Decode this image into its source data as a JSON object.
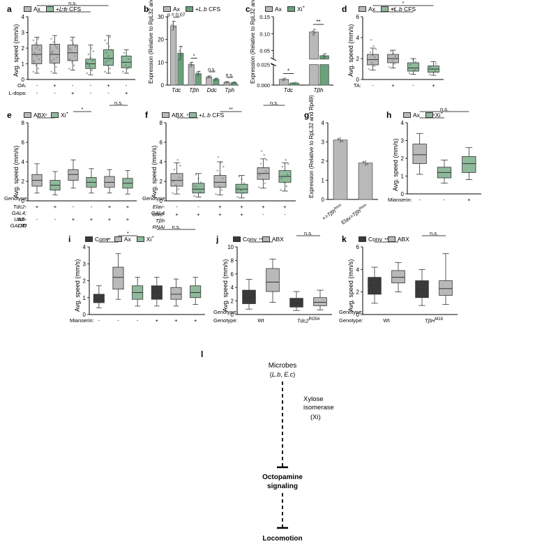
{
  "colors": {
    "gray": "#b9b9b9",
    "green": "#8fb99b",
    "dark": "#3a3a3a",
    "darkgreen": "#6aa07a",
    "axis": "#000000"
  },
  "panelA": {
    "label": "a",
    "type": "boxplot",
    "ylabel": "Avg. speed (mm/s)",
    "ylim": [
      0,
      4
    ],
    "ytick_step": 1,
    "legend": [
      {
        "label": "Ax",
        "color": "gray"
      },
      {
        "label": "+L.b CFS",
        "color": "green",
        "italic": true
      }
    ],
    "groups": [
      {
        "color": "gray",
        "q1": 1.0,
        "median": 1.6,
        "q3": 2.2,
        "lo": 0.4,
        "hi": 2.7,
        "dots": [
          0.5,
          0.7,
          0.9,
          1.1,
          1.3,
          1.5,
          1.7,
          1.9,
          2.1,
          2.3,
          2.5,
          2.6,
          2.0,
          1.2
        ]
      },
      {
        "color": "gray",
        "q1": 1.05,
        "median": 1.6,
        "q3": 2.25,
        "lo": 0.4,
        "hi": 2.8,
        "dots": [
          0.5,
          0.8,
          1.0,
          1.2,
          1.4,
          1.6,
          1.8,
          2.0,
          2.2,
          2.4,
          2.6,
          2.1,
          1.3,
          1.7
        ]
      },
      {
        "color": "gray",
        "q1": 1.2,
        "median": 1.7,
        "q3": 2.2,
        "lo": 0.6,
        "hi": 2.7,
        "dots": [
          0.7,
          0.9,
          1.1,
          1.3,
          1.5,
          1.7,
          1.9,
          2.1,
          2.3,
          2.5,
          2.0
        ]
      },
      {
        "color": "green",
        "q1": 0.7,
        "median": 1.0,
        "q3": 1.3,
        "lo": 0.3,
        "hi": 2.2,
        "dots": [
          0.4,
          0.6,
          0.8,
          1.0,
          1.2,
          1.4,
          1.6,
          1.8,
          2.0,
          0.9,
          1.1
        ]
      },
      {
        "color": "green",
        "q1": 0.9,
        "median": 1.35,
        "q3": 1.9,
        "lo": 0.4,
        "hi": 2.8,
        "dots": [
          0.5,
          0.7,
          0.9,
          1.1,
          1.3,
          1.5,
          1.7,
          1.9,
          2.1,
          2.3,
          2.5,
          2.7,
          1.2
        ]
      },
      {
        "color": "green",
        "q1": 0.75,
        "median": 1.1,
        "q3": 1.5,
        "lo": 0.4,
        "hi": 1.9,
        "dots": [
          0.5,
          0.7,
          0.9,
          1.1,
          1.3,
          1.5,
          1.7,
          0.8
        ]
      }
    ],
    "rows": [
      {
        "label": "OA:",
        "vals": [
          "-",
          "+",
          "-",
          "-",
          "+",
          "-"
        ]
      },
      {
        "label": "L-dopa:",
        "vals": [
          "-",
          "-",
          "+",
          "-",
          "-",
          "+"
        ]
      }
    ],
    "sig": [
      {
        "text": "**",
        "from": 0,
        "to": 3
      },
      {
        "text": "n.s.",
        "from": 0,
        "to": 4
      },
      {
        "text": "*",
        "from": 0,
        "to": 5
      }
    ]
  },
  "panelB": {
    "label": "b",
    "type": "bar",
    "ylabel": "Expression\n(Relative to RpL32 and Rp49)",
    "ylim": [
      0,
      30
    ],
    "ytick_step": 10,
    "legend": [
      {
        "label": "Ax",
        "color": "gray"
      },
      {
        "label": "+L.b CFS",
        "color": "darkgreen",
        "italic": true
      }
    ],
    "xcats": [
      "Tdc",
      "Tβh",
      "Ddc",
      "Tph"
    ],
    "series": [
      {
        "color": "gray",
        "vals": [
          26,
          9,
          3.5,
          1.2
        ],
        "err": [
          2,
          1,
          0.5,
          0.3
        ]
      },
      {
        "color": "darkgreen",
        "vals": [
          14,
          5,
          2.5,
          1.0
        ],
        "err": [
          3,
          1,
          0.5,
          0.3
        ]
      }
    ],
    "sig": [
      {
        "text": "p = 0.07",
        "pair": 0
      },
      {
        "text": "*",
        "pair": 1
      },
      {
        "text": "n.s.",
        "pair": 2
      },
      {
        "text": "n.s.",
        "pair": 3
      }
    ]
  },
  "panelC": {
    "label": "c",
    "type": "bar-broken",
    "ylabel": "Expression\n(Relative to RpL32 and Rp49)",
    "legend": [
      {
        "label": "Ax",
        "color": "gray"
      },
      {
        "label": "Xi+",
        "color": "darkgreen"
      }
    ],
    "xcats": [
      "Tdc",
      "Tβh"
    ],
    "lower": {
      "ylim": [
        0,
        0.025
      ],
      "ticks": [
        0.0,
        0.025
      ]
    },
    "upper": {
      "ylim": [
        0.025,
        0.15
      ],
      "ticks": [
        0.05,
        0.1,
        0.15
      ]
    },
    "series": [
      {
        "color": "gray",
        "vals": [
          0.007,
          0.105
        ],
        "err": [
          0.002,
          0.01
        ]
      },
      {
        "color": "darkgreen",
        "vals": [
          0.0025,
          0.035
        ],
        "err": [
          0.0008,
          0.008
        ]
      }
    ],
    "sig": [
      {
        "text": "*",
        "pair": 0
      },
      {
        "text": "**",
        "pair": 1
      }
    ]
  },
  "panelD": {
    "label": "d",
    "type": "boxplot",
    "ylabel": "Avg. speed (mm/s)",
    "ylim": [
      0,
      6
    ],
    "ytick_step": 2,
    "legend": [
      {
        "label": "Ax",
        "color": "gray"
      },
      {
        "label": "+L.b CFS",
        "color": "green",
        "italic": true
      }
    ],
    "groups": [
      {
        "color": "gray",
        "q1": 1.4,
        "median": 1.9,
        "q3": 2.4,
        "lo": 0.9,
        "hi": 3.0,
        "dots": [
          1.0,
          1.3,
          1.6,
          1.9,
          2.1,
          2.3,
          2.6,
          2.9,
          3.2,
          3.8
        ]
      },
      {
        "color": "gray",
        "q1": 1.6,
        "median": 2.0,
        "q3": 2.4,
        "lo": 1.1,
        "hi": 2.8,
        "dots": [
          1.2,
          1.5,
          1.8,
          2.0,
          2.2,
          2.5,
          2.7
        ]
      },
      {
        "color": "green",
        "q1": 0.8,
        "median": 1.1,
        "q3": 1.6,
        "lo": 0.5,
        "hi": 2.0,
        "dots": [
          0.6,
          0.9,
          1.1,
          1.4,
          1.7,
          1.9
        ]
      },
      {
        "color": "green",
        "q1": 0.7,
        "median": 1.0,
        "q3": 1.3,
        "lo": 0.4,
        "hi": 1.7,
        "dots": [
          0.5,
          0.8,
          1.0,
          1.2,
          1.5
        ]
      }
    ],
    "rows": [
      {
        "label": "TA:",
        "vals": [
          "-",
          "+",
          "-",
          "+"
        ]
      }
    ],
    "sig": [
      {
        "text": "**",
        "from": 0,
        "to": 2
      },
      {
        "text": "*",
        "from": 0,
        "to": 3
      },
      {
        "text": "n.s.",
        "from": 0,
        "to": 1
      }
    ]
  },
  "panelE": {
    "label": "e",
    "type": "boxplot",
    "ylabel": "Avg. speed (mm/s)",
    "ylim": [
      0,
      8
    ],
    "ytick_step": 2,
    "legend": [
      {
        "label": "ABX",
        "color": "gray"
      },
      {
        "label": "Xi+",
        "color": "green"
      }
    ],
    "groups": [
      {
        "color": "gray",
        "q1": 1.5,
        "median": 2.1,
        "q3": 2.7,
        "lo": 0.8,
        "hi": 3.8
      },
      {
        "color": "green",
        "q1": 1.1,
        "median": 1.6,
        "q3": 2.1,
        "lo": 0.6,
        "hi": 3.0
      },
      {
        "color": "gray",
        "q1": 2.1,
        "median": 2.7,
        "q3": 3.2,
        "lo": 1.3,
        "hi": 4.2
      },
      {
        "color": "green",
        "q1": 1.4,
        "median": 1.9,
        "q3": 2.4,
        "lo": 0.8,
        "hi": 3.3
      },
      {
        "color": "gray",
        "q1": 1.4,
        "median": 1.9,
        "q3": 2.5,
        "lo": 0.8,
        "hi": 3.2
      },
      {
        "color": "green",
        "q1": 1.3,
        "median": 1.8,
        "q3": 2.3,
        "lo": 0.7,
        "hi": 3.1
      }
    ],
    "rows": [
      {
        "label": "Tdc2-GAL4;\ntsh-GAL80",
        "vals": [
          "+",
          "+",
          "-",
          "-",
          "+",
          "+"
        ],
        "pair": true,
        "italic": true
      },
      {
        "label": "UAS-DTI",
        "vals": [
          "-",
          "-",
          "+",
          "+",
          "+",
          "+"
        ],
        "pair": true,
        "italic": true
      }
    ],
    "sig": [
      {
        "text": "*",
        "from": 0,
        "to": 1
      },
      {
        "text": "*",
        "from": 2,
        "to": 3
      },
      {
        "text": "n.s.",
        "from": 4,
        "to": 5
      }
    ],
    "genotype_label": "Genotype:"
  },
  "panelF": {
    "label": "f",
    "type": "boxplot",
    "ylabel": "Avg. speed (mm/s)",
    "ylim": [
      0,
      8
    ],
    "ytick_step": 2,
    "legend": [
      {
        "label": "ABX",
        "color": "gray"
      },
      {
        "label": "+L.b CFS",
        "color": "green",
        "italic": true
      }
    ],
    "groups": [
      {
        "color": "gray",
        "q1": 1.5,
        "median": 2.1,
        "q3": 2.8,
        "lo": 0.7,
        "hi": 3.9,
        "dots": [
          0.8,
          1.2,
          1.6,
          2.0,
          2.4,
          2.8,
          3.2,
          3.6,
          4.2
        ]
      },
      {
        "color": "green",
        "q1": 0.8,
        "median": 1.2,
        "q3": 1.8,
        "lo": 0.4,
        "hi": 2.8,
        "dots": [
          0.5,
          0.9,
          1.2,
          1.5,
          1.9,
          2.3,
          2.7
        ]
      },
      {
        "color": "gray",
        "q1": 1.4,
        "median": 1.9,
        "q3": 2.6,
        "lo": 0.6,
        "hi": 4.0,
        "dots": [
          0.7,
          1.1,
          1.5,
          1.9,
          2.3,
          2.7,
          3.1,
          3.5,
          3.9,
          4.5
        ]
      },
      {
        "color": "green",
        "q1": 0.8,
        "median": 1.2,
        "q3": 1.7,
        "lo": 0.3,
        "hi": 2.6,
        "dots": [
          0.4,
          0.8,
          1.1,
          1.4,
          1.8,
          2.2,
          2.5
        ]
      },
      {
        "color": "gray",
        "q1": 2.2,
        "median": 2.8,
        "q3": 3.4,
        "lo": 1.3,
        "hi": 4.3,
        "dots": [
          1.4,
          1.8,
          2.2,
          2.6,
          3.0,
          3.4,
          3.8,
          4.2,
          4.7,
          5.1
        ]
      },
      {
        "color": "green",
        "q1": 1.9,
        "median": 2.5,
        "q3": 3.1,
        "lo": 1.0,
        "hi": 3.9,
        "dots": [
          1.1,
          1.5,
          1.9,
          2.3,
          2.7,
          3.1,
          3.5,
          3.8,
          4.2
        ]
      }
    ],
    "rows": [
      {
        "label": "Elav-GAL4",
        "vals": [
          "-",
          "-",
          "+",
          "+",
          "+",
          "+"
        ],
        "pair": true,
        "italic": true
      },
      {
        "label": "UAS-Tβh RNAi",
        "vals": [
          "+",
          "+",
          "+",
          "+",
          "-",
          "-"
        ],
        "pair": true,
        "italic": true
      }
    ],
    "sig": [
      {
        "text": "*",
        "from": 0,
        "to": 1
      },
      {
        "text": "**",
        "from": 2,
        "to": 3
      },
      {
        "text": "n.s.",
        "from": 4,
        "to": 5
      }
    ],
    "genotype_label": "Genotype:"
  },
  "panelG": {
    "label": "g",
    "type": "bar",
    "ylabel": "Expression\n(Relative to RpL32 and Rp49)",
    "ylim": [
      0,
      4
    ],
    "ytick_step": 1,
    "cats": [
      {
        "top": "+>",
        "sub": "Tβh",
        "sup": "RNAi"
      },
      {
        "top": "Elav>",
        "sub": "Tβh",
        "sup": "RNAi"
      }
    ],
    "color": "gray",
    "vals": [
      3.1,
      1.9
    ],
    "err": [
      0.15,
      0.15
    ]
  },
  "panelH": {
    "label": "h",
    "type": "boxplot",
    "ylabel": "Avg. speed (mm/s)",
    "ylim": [
      0,
      4
    ],
    "ytick_step": 1,
    "legend": [
      {
        "label": "Ax",
        "color": "gray"
      },
      {
        "label": "Xi+",
        "color": "green"
      }
    ],
    "groups": [
      {
        "color": "gray",
        "q1": 1.7,
        "median": 2.2,
        "q3": 2.8,
        "lo": 1.1,
        "hi": 3.4
      },
      {
        "color": "green",
        "q1": 0.9,
        "median": 1.2,
        "q3": 1.5,
        "lo": 0.6,
        "hi": 1.9
      },
      {
        "color": "green",
        "q1": 1.2,
        "median": 1.7,
        "q3": 2.1,
        "lo": 0.8,
        "hi": 2.6
      }
    ],
    "rows": [
      {
        "label": "Mianserin:",
        "vals": [
          "-",
          "-",
          "+"
        ]
      }
    ],
    "sig": [
      {
        "text": "***",
        "from": 0,
        "to": 1
      },
      {
        "text": "n.s.",
        "from": 0,
        "to": 2
      }
    ]
  },
  "panelI": {
    "label": "i",
    "type": "boxplot",
    "ylabel": "Avg. speed (mm/s)",
    "ylim": [
      0,
      4
    ],
    "ytick_step": 1,
    "legend": [
      {
        "label": "Conv",
        "color": "dark"
      },
      {
        "label": "Ax",
        "color": "gray"
      },
      {
        "label": "Xi+",
        "color": "green"
      }
    ],
    "groups": [
      {
        "color": "dark",
        "q1": 0.7,
        "median": 0.9,
        "q3": 1.2,
        "lo": 0.4,
        "hi": 1.7
      },
      {
        "color": "gray",
        "q1": 1.5,
        "median": 2.2,
        "q3": 2.8,
        "lo": 0.9,
        "hi": 3.6
      },
      {
        "color": "green",
        "q1": 0.9,
        "median": 1.3,
        "q3": 1.7,
        "lo": 0.5,
        "hi": 2.2
      },
      {
        "color": "dark",
        "q1": 0.9,
        "median": 1.3,
        "q3": 1.7,
        "lo": 0.5,
        "hi": 2.2
      },
      {
        "color": "gray",
        "q1": 0.9,
        "median": 1.2,
        "q3": 1.6,
        "lo": 0.5,
        "hi": 2.1
      },
      {
        "color": "green",
        "q1": 1.0,
        "median": 1.3,
        "q3": 1.7,
        "lo": 0.6,
        "hi": 2.2
      }
    ],
    "rows": [
      {
        "label": "Mianserin:",
        "vals": [
          "-",
          "-",
          "-",
          "+",
          "+",
          "+"
        ]
      }
    ],
    "sig": [
      {
        "text": "**",
        "from": 0,
        "to": 1
      },
      {
        "text": "*",
        "from": 1,
        "to": 2
      },
      {
        "text": "n.s.",
        "from": 3,
        "to": 5
      }
    ]
  },
  "panelJ": {
    "label": "j",
    "type": "boxplot",
    "ylabel": "Avg. speed (mm/s)",
    "ylim": [
      0,
      10
    ],
    "ytick_step": 2,
    "legend": [
      {
        "label": "Conv",
        "color": "dark"
      },
      {
        "label": "ABX",
        "color": "gray"
      }
    ],
    "groups": [
      {
        "color": "dark",
        "q1": 1.6,
        "median": 2.5,
        "q3": 3.6,
        "lo": 0.8,
        "hi": 5.2
      },
      {
        "color": "gray",
        "q1": 3.4,
        "median": 4.8,
        "q3": 6.8,
        "lo": 1.8,
        "hi": 8.2
      },
      {
        "color": "dark",
        "q1": 1.1,
        "median": 1.7,
        "q3": 2.4,
        "lo": 0.6,
        "hi": 3.4
      },
      {
        "color": "gray",
        "q1": 1.3,
        "median": 1.8,
        "q3": 2.5,
        "lo": 0.7,
        "hi": 3.6
      }
    ],
    "genotypes": [
      "Wt",
      "Tdc2^RO54"
    ],
    "genotype_label": "Genotype:",
    "sig": [
      {
        "text": "**",
        "from": 0,
        "to": 1
      },
      {
        "text": "n.s.",
        "from": 2,
        "to": 3
      }
    ]
  },
  "panelK": {
    "label": "k",
    "type": "boxplot",
    "ylabel": "Avg. speed (mm/s)",
    "ylim": [
      0,
      6
    ],
    "ytick_step": 2,
    "legend": [
      {
        "label": "Conv",
        "color": "dark"
      },
      {
        "label": "ABX",
        "color": "gray"
      }
    ],
    "groups": [
      {
        "color": "dark",
        "q1": 1.8,
        "median": 2.6,
        "q3": 3.3,
        "lo": 1.0,
        "hi": 4.2
      },
      {
        "color": "gray",
        "q1": 2.8,
        "median": 3.3,
        "q3": 3.9,
        "lo": 2.0,
        "hi": 4.6
      },
      {
        "color": "dark",
        "q1": 1.5,
        "median": 2.2,
        "q3": 3.0,
        "lo": 0.8,
        "hi": 4.0
      },
      {
        "color": "gray",
        "q1": 1.7,
        "median": 2.3,
        "q3": 3.0,
        "lo": 0.9,
        "hi": 5.4
      }
    ],
    "genotypes": [
      "Wt",
      "TβH^M18"
    ],
    "genotype_label": "Genotype:",
    "sig": [
      {
        "text": "**",
        "from": 0,
        "to": 1
      },
      {
        "text": "n.s.",
        "from": 2,
        "to": 3
      }
    ]
  },
  "panelL": {
    "label": "l",
    "nodes": [
      {
        "text": "Microbes",
        "sub": "(L.b, E.c)",
        "subitalic": true
      },
      {
        "side": "Xylose\nisomerase",
        "sidept": "(Xi)"
      },
      {
        "text": "Octopamine\nsignaling",
        "bold": true
      },
      {
        "text": "Locomotion",
        "bold": true
      }
    ]
  }
}
